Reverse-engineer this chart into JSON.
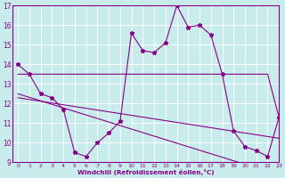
{
  "x": [
    0,
    1,
    2,
    3,
    4,
    5,
    6,
    7,
    8,
    9,
    10,
    11,
    12,
    13,
    14,
    15,
    16,
    17,
    18,
    19,
    20,
    21,
    22,
    23
  ],
  "y_main": [
    14.0,
    13.5,
    12.5,
    12.3,
    11.7,
    9.5,
    9.3,
    10.0,
    10.5,
    11.1,
    15.6,
    14.7,
    14.6,
    15.1,
    17.0,
    15.9,
    16.0,
    15.5,
    13.5,
    10.6,
    9.8,
    9.6,
    9.3,
    11.3
  ],
  "y_trend1": [
    13.5,
    13.5,
    13.5,
    13.5,
    13.5,
    13.5,
    13.5,
    13.5,
    13.5,
    13.5,
    13.5,
    13.5,
    13.5,
    13.5,
    13.5,
    13.5,
    13.5,
    13.5,
    13.5,
    13.5,
    13.5,
    13.5,
    13.5,
    11.3
  ],
  "y_trend2": [
    12.5,
    12.32,
    12.14,
    11.96,
    11.78,
    11.6,
    11.42,
    11.24,
    11.06,
    10.88,
    10.7,
    10.52,
    10.34,
    10.16,
    9.98,
    9.8,
    9.62,
    9.44,
    9.26,
    9.08,
    8.9,
    8.72,
    8.54,
    8.36
  ],
  "y_trend3": [
    12.3,
    12.21,
    12.12,
    12.03,
    11.94,
    11.85,
    11.76,
    11.67,
    11.58,
    11.49,
    11.4,
    11.31,
    11.22,
    11.13,
    11.04,
    10.95,
    10.86,
    10.77,
    10.68,
    10.59,
    10.5,
    10.41,
    10.32,
    10.23
  ],
  "xlim": [
    -0.5,
    23
  ],
  "ylim": [
    9,
    17
  ],
  "yticks": [
    9,
    10,
    11,
    12,
    13,
    14,
    15,
    16,
    17
  ],
  "xticks": [
    0,
    1,
    2,
    3,
    4,
    5,
    6,
    7,
    8,
    9,
    10,
    11,
    12,
    13,
    14,
    15,
    16,
    17,
    18,
    19,
    20,
    21,
    22,
    23
  ],
  "xlabel": "Windchill (Refroidissement éolien,°C)",
  "line_color": "#880088",
  "bg_color": "#c8ecec",
  "grid_color": "#ffffff"
}
